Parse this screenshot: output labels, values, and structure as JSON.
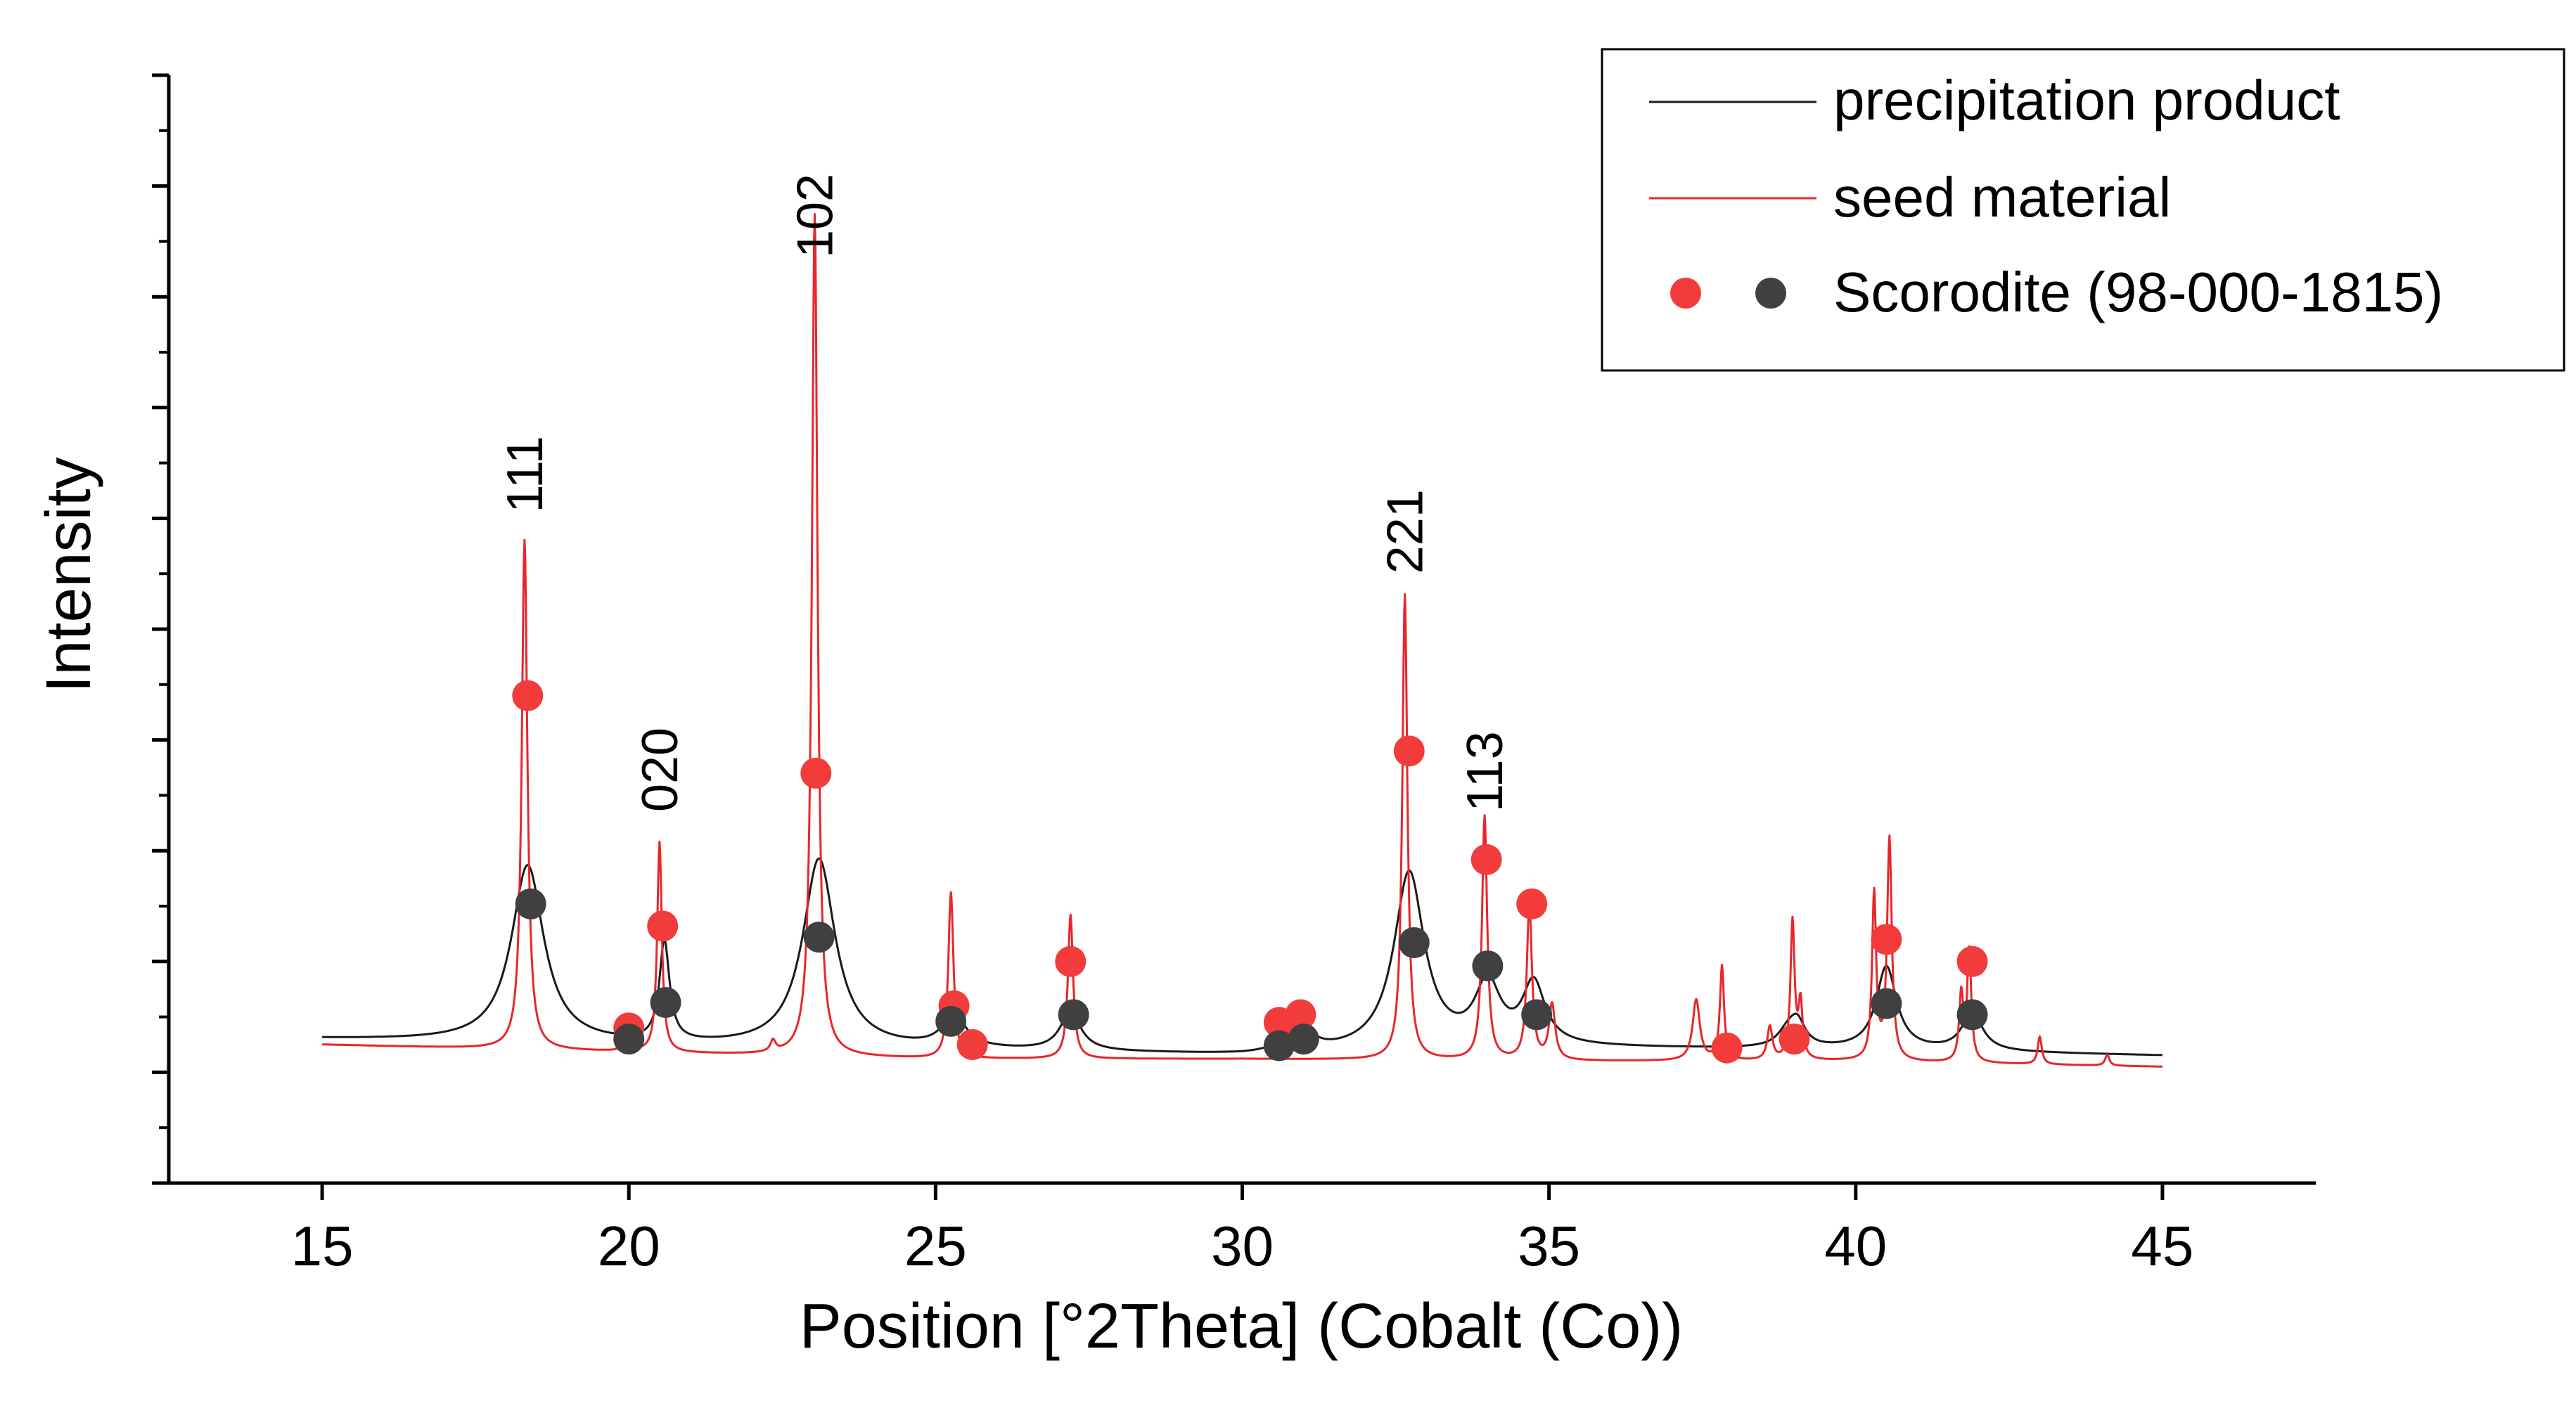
{
  "chart_data": {
    "type": "line",
    "title": "",
    "xlabel": "Position [°2Theta] (Cobalt (Co))",
    "ylabel": "Intensity",
    "xlim": [
      12.5,
      47.5
    ],
    "ylim": [
      0,
      10
    ],
    "x_ticks": [
      15,
      20,
      25,
      30,
      35,
      40,
      45
    ],
    "x_tick_labels": [
      "15",
      "20",
      "25",
      "30",
      "35",
      "40",
      "45"
    ],
    "y_tick_labels_shown": false,
    "grid": false,
    "legend": {
      "position": "top-right",
      "entries": [
        {
          "label": "precipitation product",
          "kind": "line",
          "color": "#1a1a1a"
        },
        {
          "label": "seed material",
          "kind": "line",
          "color": "#e8262b"
        },
        {
          "label": "Scorodite (98-000-1815)",
          "kind": "markers",
          "colors": [
            "#f23b3b",
            "#404040"
          ]
        }
      ]
    },
    "series": [
      {
        "name": "precipitation product",
        "color": "#1a1a1a",
        "baseline": [
          [
            15,
            1.3
          ],
          [
            20,
            1.24
          ],
          [
            25,
            1.2
          ],
          [
            30,
            1.15
          ],
          [
            35,
            1.22
          ],
          [
            40,
            1.2
          ],
          [
            45,
            1.15
          ]
        ],
        "peaks": [
          {
            "x": 18.35,
            "h": 1.6,
            "w": 0.32
          },
          {
            "x": 20.58,
            "h": 0.9,
            "w": 0.1
          },
          {
            "x": 23.1,
            "h": 1.7,
            "w": 0.32
          },
          {
            "x": 25.3,
            "h": 0.3,
            "w": 0.22
          },
          {
            "x": 27.2,
            "h": 0.35,
            "w": 0.2
          },
          {
            "x": 30.7,
            "h": 0.1,
            "w": 0.2
          },
          {
            "x": 31.1,
            "h": 0.1,
            "w": 0.2
          },
          {
            "x": 32.72,
            "h": 1.6,
            "w": 0.3
          },
          {
            "x": 34.0,
            "h": 0.55,
            "w": 0.25
          },
          {
            "x": 34.75,
            "h": 0.55,
            "w": 0.22
          },
          {
            "x": 38.9,
            "h": 0.15,
            "w": 0.2
          },
          {
            "x": 39.05,
            "h": 0.2,
            "w": 0.15
          },
          {
            "x": 40.5,
            "h": 0.75,
            "w": 0.2
          },
          {
            "x": 41.9,
            "h": 0.35,
            "w": 0.2
          }
        ]
      },
      {
        "name": "seed material",
        "color": "#e8262b",
        "baseline": [
          [
            15,
            1.25
          ],
          [
            20,
            1.18
          ],
          [
            25,
            1.12
          ],
          [
            30,
            1.12
          ],
          [
            35,
            1.1
          ],
          [
            40,
            1.1
          ],
          [
            45,
            1.05
          ]
        ],
        "peaks": [
          {
            "x": 18.3,
            "h": 4.6,
            "w": 0.055
          },
          {
            "x": 19.95,
            "h": 0.2,
            "w": 0.04
          },
          {
            "x": 20.5,
            "h": 1.9,
            "w": 0.045
          },
          {
            "x": 22.35,
            "h": 0.1,
            "w": 0.05
          },
          {
            "x": 23.03,
            "h": 7.6,
            "w": 0.055
          },
          {
            "x": 25.25,
            "h": 1.5,
            "w": 0.05
          },
          {
            "x": 27.2,
            "h": 1.3,
            "w": 0.05
          },
          {
            "x": 32.65,
            "h": 4.2,
            "w": 0.05
          },
          {
            "x": 33.95,
            "h": 2.2,
            "w": 0.05
          },
          {
            "x": 34.68,
            "h": 1.4,
            "w": 0.05
          },
          {
            "x": 35.05,
            "h": 0.5,
            "w": 0.06
          },
          {
            "x": 37.4,
            "h": 0.55,
            "w": 0.07
          },
          {
            "x": 37.82,
            "h": 0.85,
            "w": 0.04
          },
          {
            "x": 38.6,
            "h": 0.3,
            "w": 0.05
          },
          {
            "x": 38.97,
            "h": 1.25,
            "w": 0.04
          },
          {
            "x": 39.1,
            "h": 0.5,
            "w": 0.04
          },
          {
            "x": 40.3,
            "h": 1.5,
            "w": 0.04
          },
          {
            "x": 40.55,
            "h": 2.0,
            "w": 0.045
          },
          {
            "x": 41.72,
            "h": 0.6,
            "w": 0.04
          },
          {
            "x": 41.85,
            "h": 1.0,
            "w": 0.04
          },
          {
            "x": 43.0,
            "h": 0.25,
            "w": 0.04
          },
          {
            "x": 44.1,
            "h": 0.1,
            "w": 0.04
          }
        ]
      }
    ],
    "reference_markers": [
      {
        "name": "Scorodite (98-000-1815)",
        "set": "seed material",
        "color": "#f23b3b",
        "points": [
          [
            18.35,
            4.4
          ],
          [
            20.0,
            1.4
          ],
          [
            20.55,
            2.32
          ],
          [
            23.05,
            3.7
          ],
          [
            25.3,
            1.6
          ],
          [
            25.6,
            1.25
          ],
          [
            27.2,
            2.0
          ],
          [
            30.6,
            1.45
          ],
          [
            30.95,
            1.52
          ],
          [
            32.72,
            3.9
          ],
          [
            33.98,
            2.92
          ],
          [
            34.72,
            2.52
          ],
          [
            37.9,
            1.22
          ],
          [
            39.0,
            1.3
          ],
          [
            40.5,
            2.2
          ],
          [
            41.9,
            2.0
          ]
        ]
      },
      {
        "name": "Scorodite (98-000-1815)",
        "set": "precipitation product",
        "color": "#404040",
        "points": [
          [
            18.4,
            2.52
          ],
          [
            20.0,
            1.3
          ],
          [
            20.6,
            1.63
          ],
          [
            23.1,
            2.22
          ],
          [
            25.25,
            1.46
          ],
          [
            27.25,
            1.52
          ],
          [
            30.6,
            1.24
          ],
          [
            31.0,
            1.3
          ],
          [
            32.8,
            2.17
          ],
          [
            34.0,
            1.96
          ],
          [
            34.8,
            1.52
          ],
          [
            40.5,
            1.62
          ],
          [
            41.9,
            1.52
          ]
        ]
      }
    ],
    "annotations": [
      {
        "text": "111",
        "x": 18.3,
        "y": 6.05
      },
      {
        "text": "020",
        "x": 20.5,
        "y": 3.35
      },
      {
        "text": "102",
        "x": 23.03,
        "y": 8.35
      },
      {
        "text": "221",
        "x": 32.65,
        "y": 5.5
      },
      {
        "text": "113",
        "x": 33.95,
        "y": 3.35
      }
    ]
  }
}
